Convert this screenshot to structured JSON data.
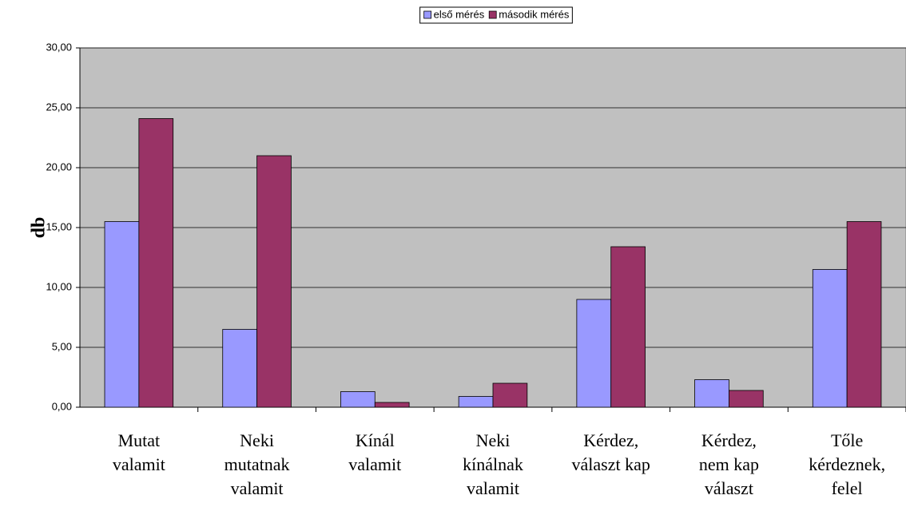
{
  "chart_data": {
    "type": "bar",
    "categories": [
      "Mutat\nvalamit",
      "Neki\nmutatnak\nvalamit",
      "Kínál\nvalamit",
      "Neki\nkínálnak\nvalamit",
      "Kérdez,\nválaszt kap",
      "Kérdez,\nnem kap\nválaszt",
      "Tőle\nkérdeznek,\nfelel"
    ],
    "series": [
      {
        "name": "első mérés",
        "color": "#9999ff",
        "values": [
          15.5,
          6.5,
          1.3,
          0.9,
          9.0,
          2.3,
          11.5
        ]
      },
      {
        "name": "második mérés",
        "color": "#993366",
        "values": [
          24.1,
          21.0,
          0.4,
          2.0,
          13.4,
          1.4,
          15.5
        ]
      }
    ],
    "ylabel": "db",
    "ylim": [
      0,
      30
    ],
    "yticks": [
      {
        "value": 0,
        "label": "0,00"
      },
      {
        "value": 5,
        "label": "5,00"
      },
      {
        "value": 10,
        "label": "10,00"
      },
      {
        "value": 15,
        "label": "15,00"
      },
      {
        "value": 20,
        "label": "20,00"
      },
      {
        "value": 25,
        "label": "25,00"
      },
      {
        "value": 30,
        "label": "30,00"
      }
    ],
    "grid": true,
    "legend": "top"
  }
}
